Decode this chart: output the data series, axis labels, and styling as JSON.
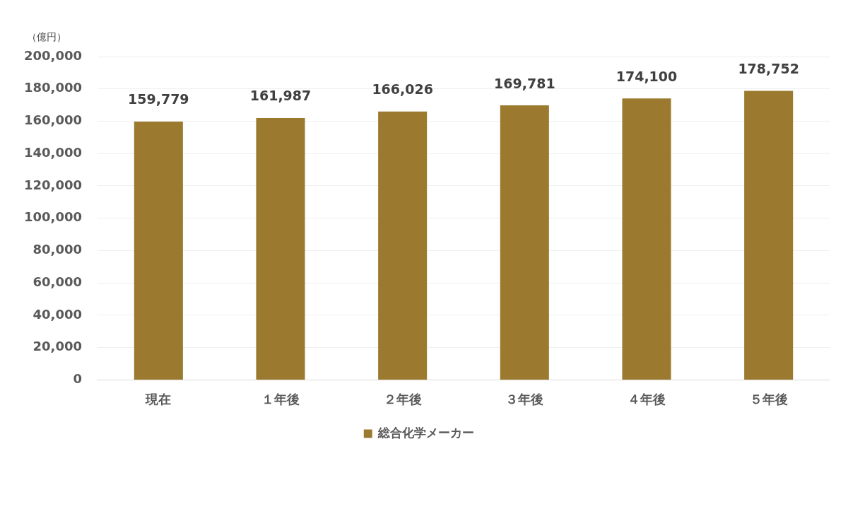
{
  "chart_data": {
    "type": "bar",
    "ylabel": "（億円）",
    "categories": [
      "現在",
      "１年後",
      "２年後",
      "３年後",
      "４年後",
      "５年後"
    ],
    "series": [
      {
        "name": "総合化学メーカー",
        "color": "#9b7a2f",
        "values": [
          159779,
          161987,
          166026,
          169781,
          174100,
          178752
        ],
        "value_labels": [
          "159,779",
          "161,987",
          "166,026",
          "169,781",
          "174,100",
          "178,752"
        ]
      }
    ],
    "ylim": [
      0,
      200000
    ],
    "yticks": [
      {
        "value": 0,
        "label": "0"
      },
      {
        "value": 20000,
        "label": "20,000"
      },
      {
        "value": 40000,
        "label": "40,000"
      },
      {
        "value": 60000,
        "label": "60,000"
      },
      {
        "value": 80000,
        "label": "80,000"
      },
      {
        "value": 100000,
        "label": "100,000"
      },
      {
        "value": 120000,
        "label": "120,000"
      },
      {
        "value": 140000,
        "label": "140,000"
      },
      {
        "value": 160000,
        "label": "160,000"
      },
      {
        "value": 180000,
        "label": "180,000"
      },
      {
        "value": 200000,
        "label": "200,000"
      }
    ],
    "grid": "y",
    "legend": "bottom"
  }
}
